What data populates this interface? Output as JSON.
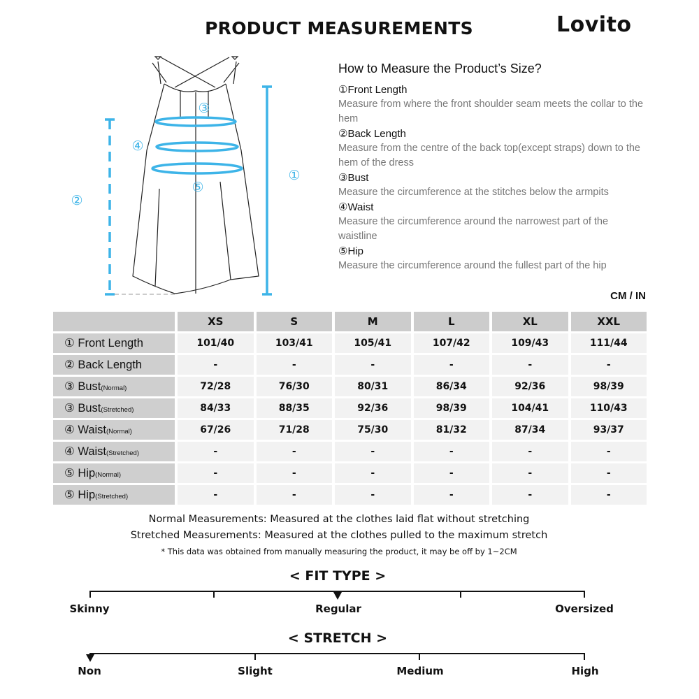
{
  "header": {
    "title": "PRODUCT MEASUREMENTS",
    "brand": "Lovito"
  },
  "illustration": {
    "accent_color": "#3db4e8",
    "markers": [
      "①",
      "②",
      "③",
      "④",
      "⑤"
    ]
  },
  "how_to": {
    "title": "How to Measure the Product’s Size?",
    "items": [
      {
        "name": "①Front Length",
        "desc": "Measure from where the front shoulder seam meets the collar to the hem"
      },
      {
        "name": "②Back Length",
        "desc": "Measure from the centre of the back top(except straps) down to the hem of the dress"
      },
      {
        "name": "③Bust",
        "desc": "Measure the circumference at the stitches below the armpits"
      },
      {
        "name": "④Waist",
        "desc": "Measure the circumference around the narrowest part of the waistline"
      },
      {
        "name": "⑤Hip",
        "desc": "Measure the circumference around the fullest part of the hip"
      }
    ]
  },
  "size_table": {
    "unit": "CM / IN",
    "sizes": [
      "XS",
      "S",
      "M",
      "L",
      "XL",
      "XXL"
    ],
    "rows": [
      {
        "label": "① Front Length",
        "sub": "",
        "values": [
          "101/40",
          "103/41",
          "105/41",
          "107/42",
          "109/43",
          "111/44"
        ]
      },
      {
        "label": "② Back Length",
        "sub": "",
        "values": [
          "-",
          "-",
          "-",
          "-",
          "-",
          "-"
        ]
      },
      {
        "label": "③ Bust",
        "sub": "(Normal)",
        "values": [
          "72/28",
          "76/30",
          "80/31",
          "86/34",
          "92/36",
          "98/39"
        ]
      },
      {
        "label": "③ Bust",
        "sub": "(Stretched)",
        "values": [
          "84/33",
          "88/35",
          "92/36",
          "98/39",
          "104/41",
          "110/43"
        ]
      },
      {
        "label": "④ Waist",
        "sub": "(Normal)",
        "values": [
          "67/26",
          "71/28",
          "75/30",
          "81/32",
          "87/34",
          "93/37"
        ]
      },
      {
        "label": "④ Waist",
        "sub": "(Stretched)",
        "values": [
          "-",
          "-",
          "-",
          "-",
          "-",
          "-"
        ]
      },
      {
        "label": "⑤ Hip",
        "sub": "(Normal)",
        "values": [
          "-",
          "-",
          "-",
          "-",
          "-",
          "-"
        ]
      },
      {
        "label": "⑤ Hip",
        "sub": "(Stretched)",
        "values": [
          "-",
          "-",
          "-",
          "-",
          "-",
          "-"
        ]
      }
    ]
  },
  "notes": {
    "normal": "Normal Measurements: Measured at the clothes laid flat without stretching",
    "stretched": "Stretched  Measurements: Measured at the clothes pulled to the maximum stretch",
    "disclaimer": "* This data was obtained from manually measuring the product, it may be off by 1~2CM"
  },
  "fit_type": {
    "title": "< FIT TYPE >",
    "labels": [
      "Skinny",
      "Regular",
      "Oversized"
    ],
    "selected": "Regular",
    "level": 0.5
  },
  "stretch": {
    "title": "< STRETCH >",
    "labels": [
      "Non",
      "Slight",
      "Medium",
      "High"
    ],
    "selected": "Non",
    "level": 0
  }
}
